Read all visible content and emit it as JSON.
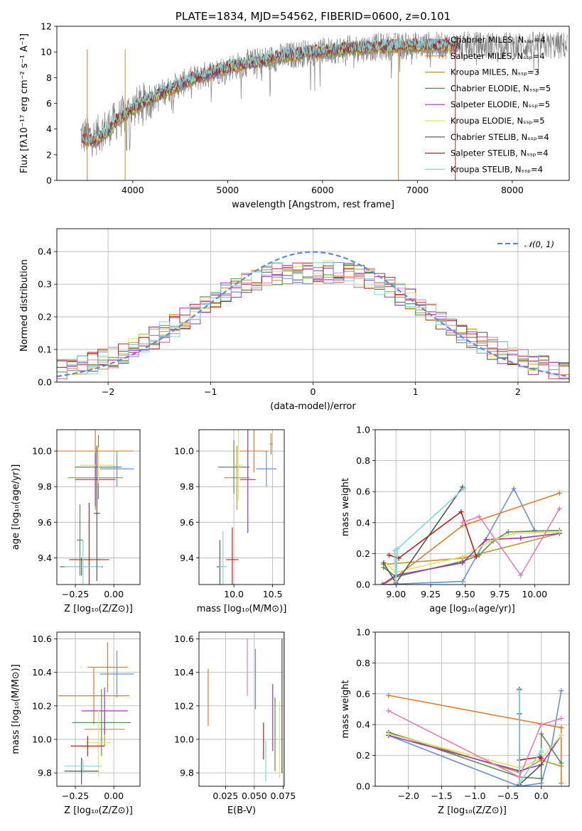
{
  "chart_data": [
    {
      "id": "spectrum",
      "type": "line",
      "title": "PLATE=1834, MJD=54562, FIBERID=0600, z=0.101",
      "xlabel": "wavelength [Angstrom, rest frame]",
      "ylabel": "Flux [fλ10⁻¹⁷ erg cm⁻² s⁻¹ A⁻¹]",
      "xlim": [
        3200,
        8600
      ],
      "ylim": [
        0,
        12
      ],
      "xticks": [
        4000,
        5000,
        6000,
        7000,
        8000
      ],
      "yticks": [
        0,
        2,
        4,
        6,
        8,
        10,
        12
      ],
      "legend": {
        "position": "top-right",
        "entries": [
          {
            "label": "Chabrier MILES, Nₛₛₚ=4",
            "color": "#6a8fd4"
          },
          {
            "label": "Salpeter MILES, Nₛₛₚ=4",
            "color": "#e07b2a"
          },
          {
            "label": "Kroupa MILES, Nₛₛₚ=3",
            "color": "#b59a2e"
          },
          {
            "label": "Chabrier ELODIE, Nₛₛₚ=5",
            "color": "#5a8a5a"
          },
          {
            "label": "Salpeter ELODIE, Nₛₛₚ=5",
            "color": "#9b37b5"
          },
          {
            "label": "Kroupa ELODIE, Nₛₛₚ=5",
            "color": "#dde060"
          },
          {
            "label": "Chabrier STELIB, Nₛₛₚ=4",
            "color": "#555555"
          },
          {
            "label": "Salpeter STELIB, Nₛₛₚ=4",
            "color": "#b22222"
          },
          {
            "label": "Kroupa STELIB, Nₛₛₚ=4",
            "color": "#7fd6dc"
          }
        ]
      },
      "data_series": {
        "name": "data",
        "color": "#808080"
      },
      "continuum_anchor": {
        "x": [
          3450,
          3600,
          3800,
          4000,
          4300,
          4600,
          5000,
          5400,
          5800,
          6200,
          6600,
          7000,
          7400
        ],
        "y": [
          3.5,
          3.4,
          4.5,
          5.6,
          6.8,
          7.8,
          8.8,
          9.4,
          9.9,
          10.2,
          10.4,
          10.5,
          10.5
        ]
      },
      "grid": false
    },
    {
      "id": "residuals",
      "type": "histogram",
      "xlabel": "(data-model)/error",
      "ylabel": "Normed distribution",
      "xlim": [
        -2.5,
        2.5
      ],
      "ylim": [
        0,
        0.47
      ],
      "xticks": [
        -2,
        -1,
        0,
        1,
        2
      ],
      "xticklabels": [
        "−2",
        "−1",
        "0",
        "1",
        "2"
      ],
      "yticks": [
        0,
        0.1,
        0.2,
        0.3,
        0.4
      ],
      "yticklabels": [
        "0.0",
        "0.1",
        "0.2",
        "0.3",
        "0.4"
      ],
      "grid": true,
      "bins": 50,
      "legend": {
        "position": "top-right",
        "entries": [
          {
            "label": "𝒩(0, 1)",
            "color": "#5a8ad4",
            "style": "dashed"
          }
        ]
      }
    },
    {
      "id": "age_vs_Z",
      "type": "errorbar",
      "xlabel": "Z [log₁₀(Z/Z⊙)]",
      "ylabel": "age  [log₁₀(age/yr)]",
      "xlim": [
        -0.37,
        0.17
      ],
      "ylim": [
        9.25,
        10.12
      ],
      "xticks": [
        -0.25,
        0.0
      ],
      "xticklabels": [
        "−0.25",
        "0.00"
      ],
      "yticks": [
        9.4,
        9.6,
        9.8,
        10.0
      ],
      "yticklabels": [
        "9.4",
        "9.6",
        "9.8",
        "10.0"
      ],
      "grid": true,
      "points": [
        {
          "series": "Chabrier MILES",
          "x": 0.02,
          "xerr": 0.11,
          "y": 9.9,
          "yerr": 0.1
        },
        {
          "series": "Salpeter MILES",
          "x": -0.12,
          "xerr": 0.25,
          "y": 10.0,
          "yerr": 0.13
        },
        {
          "series": "Kroupa MILES",
          "x": -0.12,
          "xerr": 0.18,
          "y": 9.85,
          "yerr": 0.18
        },
        {
          "series": "Chabrier ELODIE",
          "x": -0.1,
          "xerr": 0.15,
          "y": 9.91,
          "yerr": 0.18
        },
        {
          "series": "Salpeter ELODIE",
          "x": -0.12,
          "xerr": 0.13,
          "y": 9.84,
          "yerr": 0.15
        },
        {
          "series": "Kroupa ELODIE",
          "x": -0.1,
          "xerr": 0.12,
          "y": 9.92,
          "yerr": 0.1
        },
        {
          "series": "Chabrier STELIB",
          "x": -0.21,
          "xerr": 0.14,
          "y": 9.35,
          "yerr": 0.05
        },
        {
          "series": "Salpeter STELIB",
          "x": -0.16,
          "xerr": 0.13,
          "y": 9.39,
          "yerr": 0.32
        },
        {
          "series": "Kroupa STELIB",
          "x": -0.2,
          "xerr": 0.12,
          "y": 9.35,
          "yerr": 0.15
        },
        {
          "series": "Chabrier ELODIE",
          "x": -0.22,
          "xerr": 0.02,
          "y": 9.5,
          "yerr": 0.2
        },
        {
          "series": "Chabrier STELIB",
          "x": -0.11,
          "xerr": 0.02,
          "y": 9.65,
          "yerr": 0.38
        }
      ]
    },
    {
      "id": "age_vs_mass",
      "type": "errorbar",
      "xlabel": "mass [log₁₀(M/M⊙)]",
      "ylabel": "",
      "xlim": [
        9.55,
        10.65
      ],
      "ylim": [
        9.25,
        10.12
      ],
      "xticks": [
        10.0,
        10.5
      ],
      "xticklabels": [
        "10.0",
        "10.5"
      ],
      "yticks": [
        9.4,
        9.6,
        9.8,
        10.0
      ],
      "yticklabels": [
        "9.4",
        "9.6",
        "9.8",
        "10.0"
      ],
      "grid": true,
      "points": [
        {
          "series": "Chabrier MILES",
          "x": 10.42,
          "xerr": 0.13,
          "y": 9.9,
          "yerr": 0.1
        },
        {
          "series": "Salpeter MILES",
          "x": 10.26,
          "xerr": 0.18,
          "y": 10.0,
          "yerr": 0.12
        },
        {
          "series": "Kroupa MILES",
          "x": 10.04,
          "xerr": 0.16,
          "y": 9.85,
          "yerr": 0.18
        },
        {
          "series": "Chabrier ELODIE",
          "x": 10.0,
          "xerr": 0.2,
          "y": 9.91,
          "yerr": 0.15
        },
        {
          "series": "Salpeter ELODIE",
          "x": 10.18,
          "xerr": 0.1,
          "y": 9.84,
          "yerr": 0.3
        },
        {
          "series": "Kroupa ELODIE",
          "x": 10.06,
          "xerr": 0.06,
          "y": 9.92,
          "yerr": 0.2
        },
        {
          "series": "Chabrier STELIB",
          "x": 9.82,
          "xerr": 0.04,
          "y": 9.35,
          "yerr": 0.15
        },
        {
          "series": "Salpeter STELIB",
          "x": 9.98,
          "xerr": 0.08,
          "y": 9.39,
          "yerr": 0.18
        },
        {
          "series": "Kroupa STELIB",
          "x": 9.86,
          "xerr": 0.05,
          "y": 9.35,
          "yerr": 0.2
        },
        {
          "series": "Salpeter MILES",
          "x": 10.48,
          "xerr": 0.02,
          "y": 10.04,
          "yerr": 0.06
        }
      ]
    },
    {
      "id": "weight_vs_age",
      "type": "line",
      "xlabel": "age  [log₁₀(age/yr)]",
      "ylabel": "mass weight",
      "xlim": [
        8.85,
        10.25
      ],
      "ylim": [
        0,
        1.0
      ],
      "xticks": [
        9.0,
        9.25,
        9.5,
        9.75,
        10.0
      ],
      "xticklabels": [
        "9.00",
        "9.25",
        "9.50",
        "9.75",
        "10.00"
      ],
      "yticks": [
        0,
        0.2,
        0.4,
        0.6,
        0.8,
        1.0
      ],
      "yticklabels": [
        "0.0",
        "0.2",
        "0.4",
        "0.6",
        "0.8",
        "1.0"
      ],
      "grid": true,
      "series": [
        {
          "name": "Chabrier MILES",
          "x": [
            8.91,
            9.48,
            9.85,
            10.0
          ],
          "y": [
            0.0,
            0.02,
            0.62,
            0.35
          ]
        },
        {
          "name": "Salpeter MILES",
          "x": [
            8.91,
            9.0,
            9.48,
            10.18
          ],
          "y": [
            0.0,
            0.05,
            0.38,
            0.59
          ]
        },
        {
          "name": "Kroupa MILES",
          "x": [
            8.91,
            9.48,
            10.18
          ],
          "y": [
            0.13,
            0.17,
            0.33
          ]
        },
        {
          "name": "Chabrier ELODIE",
          "x": [
            8.91,
            9.0,
            9.48,
            9.6,
            9.7,
            9.81,
            10.18
          ],
          "y": [
            0.11,
            0.05,
            0.15,
            0.19,
            0.28,
            0.34,
            0.35
          ]
        },
        {
          "name": "Salpeter ELODIE",
          "x": [
            8.9,
            9.0,
            9.48,
            9.65,
            9.9,
            10.18
          ],
          "y": [
            0.0,
            0.06,
            0.14,
            0.29,
            0.3,
            0.33
          ]
        },
        {
          "name": "Kroupa ELODIE",
          "x": [
            8.92,
            9.0,
            9.48,
            9.68,
            9.85,
            10.18
          ],
          "y": [
            0.14,
            0.08,
            0.18,
            0.28,
            0.33,
            0.34
          ]
        },
        {
          "name": "Chabrier STELIB",
          "x": [
            8.91,
            9.0,
            9.48
          ],
          "y": [
            0.14,
            0.01,
            0.63
          ]
        },
        {
          "name": "Salpeter STELIB",
          "x": [
            8.95,
            9.02,
            9.47,
            9.58
          ],
          "y": [
            0.19,
            0.17,
            0.47,
            0.18
          ]
        },
        {
          "name": "Kroupa STELIB",
          "x": [
            8.99,
            9.0,
            9.01,
            9.49
          ],
          "y": [
            0.22,
            0.02,
            0.23,
            0.62
          ]
        },
        {
          "name": "Salpeter MILES",
          "x": [
            9.48,
            9.6,
            9.9,
            10.18
          ],
          "y": [
            0.4,
            0.44,
            0.06,
            0.49
          ],
          "color": "#e37fb7"
        }
      ]
    },
    {
      "id": "mass_vs_Z",
      "type": "errorbar",
      "xlabel": "Z [log₁₀(Z/Z⊙)]",
      "ylabel": "mass [log₁₀(M/M⊙)]",
      "xlim": [
        -0.37,
        0.17
      ],
      "ylim": [
        9.72,
        10.64
      ],
      "xticks": [
        -0.25,
        0.0
      ],
      "xticklabels": [
        "−0.25",
        "0.00"
      ],
      "yticks": [
        9.8,
        10.0,
        10.2,
        10.4,
        10.6
      ],
      "yticklabels": [
        "9.8",
        "10.0",
        "10.2",
        "10.4",
        "10.6"
      ],
      "grid": true,
      "points": [
        {
          "series": "Chabrier MILES",
          "x": 0.02,
          "xerr": 0.11,
          "y": 10.39,
          "yerr": 0.14
        },
        {
          "series": "Salpeter MILES",
          "x": -0.13,
          "xerr": 0.23,
          "y": 10.26,
          "yerr": 0.17
        },
        {
          "series": "Kroupa MILES",
          "x": -0.06,
          "xerr": 0.13,
          "y": 10.06,
          "yerr": 0.1
        },
        {
          "series": "Chabrier ELODIE",
          "x": -0.08,
          "xerr": 0.19,
          "y": 10.1,
          "yerr": 0.2
        },
        {
          "series": "Salpeter ELODIE",
          "x": -0.06,
          "xerr": 0.15,
          "y": 10.17,
          "yerr": 0.14
        },
        {
          "series": "Kroupa ELODIE",
          "x": -0.1,
          "xerr": 0.08,
          "y": 9.98,
          "yerr": 0.2
        },
        {
          "series": "Chabrier STELIB",
          "x": -0.21,
          "xerr": 0.11,
          "y": 9.81,
          "yerr": 0.08
        },
        {
          "series": "Salpeter STELIB",
          "x": -0.17,
          "xerr": 0.11,
          "y": 9.96,
          "yerr": 0.06
        },
        {
          "series": "Kroupa STELIB",
          "x": -0.2,
          "xerr": 0.12,
          "y": 9.84,
          "yerr": 0.04
        },
        {
          "series": "Salpeter MILES",
          "x": -0.04,
          "xerr": 0.13,
          "y": 10.43,
          "yerr": 0.15
        }
      ]
    },
    {
      "id": "ebv",
      "type": "errorbar",
      "xlabel": "E(B-V)",
      "ylabel": "",
      "xlim": [
        0.002,
        0.076
      ],
      "ylim": [
        9.72,
        10.64
      ],
      "xticks": [
        0.025,
        0.05,
        0.075
      ],
      "xticklabels": [
        "0.025",
        "0.050",
        "0.075"
      ],
      "yticks": [
        9.8,
        10.0,
        10.2,
        10.4,
        10.6
      ],
      "yticklabels": [
        "9.8",
        "10.0",
        "10.2",
        "10.4",
        "10.6"
      ],
      "grid": true,
      "points": [
        {
          "series": "Salpeter MILES",
          "x": 0.01,
          "y": 10.25,
          "yerr": 0.17
        },
        {
          "series": "Salpeter MILES",
          "x": 0.044,
          "y": 10.43,
          "yerr": 0.17,
          "color": "#e37fb7"
        },
        {
          "series": "Chabrier MILES",
          "x": 0.051,
          "y": 10.36,
          "yerr": 0.18
        },
        {
          "series": "Salpeter STELIB",
          "x": 0.058,
          "y": 9.99,
          "yerr": 0.11
        },
        {
          "series": "Kroupa STELIB",
          "x": 0.06,
          "y": 9.87,
          "yerr": 0.12
        },
        {
          "series": "Chabrier ELODIE",
          "x": 0.068,
          "y": 10.03,
          "yerr": 0.22
        },
        {
          "series": "Salpeter ELODIE",
          "x": 0.066,
          "y": 10.13,
          "yerr": 0.2
        },
        {
          "series": "Kroupa ELODIE",
          "x": 0.072,
          "y": 10.0,
          "yerr": 0.23
        },
        {
          "series": "Chabrier STELIB",
          "x": 0.074,
          "y": 10.2,
          "yerr": 0.4
        }
      ]
    },
    {
      "id": "weight_vs_Z",
      "type": "line",
      "xlabel": "Z [log₁₀(Z/Z⊙)]",
      "ylabel": "mass weight",
      "xlim": [
        -2.5,
        0.42
      ],
      "ylim": [
        0,
        1.0
      ],
      "xticks": [
        -2.0,
        -1.5,
        -1.0,
        -0.5,
        0.0
      ],
      "xticklabels": [
        "−2.0",
        "−1.5",
        "−1.0",
        "−0.5",
        "0.0"
      ],
      "yticks": [
        0,
        0.2,
        0.4,
        0.6,
        0.8,
        1.0
      ],
      "yticklabels": [
        "0.0",
        "0.2",
        "0.4",
        "0.6",
        "0.8",
        "1.0"
      ],
      "grid": true,
      "series": [
        {
          "name": "Chabrier MILES",
          "x": [
            -2.3,
            -0.33,
            0.0,
            0.15,
            0.3
          ],
          "y": [
            0.33,
            0.0,
            0.02,
            0.25,
            0.62
          ]
        },
        {
          "name": "Salpeter MILES",
          "x": [
            -2.3,
            0.3,
            0.3,
            0.3
          ],
          "y": [
            0.59,
            0.38,
            0.38,
            0.02
          ]
        },
        {
          "name": "Kroupa MILES",
          "x": [
            -2.3,
            -0.33,
            0.0,
            0.3
          ],
          "y": [
            0.35,
            0.09,
            0.17,
            0.13
          ]
        },
        {
          "name": "Chabrier ELODIE",
          "x": [
            -2.3,
            -0.33,
            0.0,
            0.0,
            0.3
          ],
          "y": [
            0.35,
            0.06,
            0.05,
            0.34,
            0.15
          ]
        },
        {
          "name": "Salpeter ELODIE",
          "x": [
            -2.3,
            -0.33,
            0.0,
            0.3
          ],
          "y": [
            0.33,
            0.1,
            0.14,
            0.33
          ]
        },
        {
          "name": "Kroupa ELODIE",
          "x": [
            -2.3,
            -0.33,
            0.0,
            0.3
          ],
          "y": [
            0.34,
            0.12,
            0.18,
            0.33
          ]
        },
        {
          "name": "Chabrier STELIB",
          "x": [
            -0.33,
            -0.33,
            0.0
          ],
          "y": [
            0.63,
            0.01,
            0.14
          ]
        },
        {
          "name": "Salpeter STELIB",
          "x": [
            -0.33,
            -0.33,
            -0.02,
            0.0
          ],
          "y": [
            0.47,
            0.17,
            0.19,
            0.18
          ]
        },
        {
          "name": "Kroupa STELIB",
          "x": [
            -0.33,
            -0.33,
            0.0,
            0.0
          ],
          "y": [
            0.62,
            0.02,
            0.23,
            0.22
          ]
        },
        {
          "name": "Salpeter MILES",
          "x": [
            -2.3,
            -0.33,
            0.0,
            0.3
          ],
          "y": [
            0.49,
            0.06,
            0.4,
            0.44
          ],
          "color": "#e37fb7"
        }
      ]
    }
  ]
}
